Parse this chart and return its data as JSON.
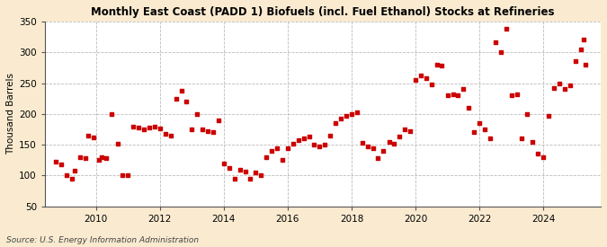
{
  "title": "Monthly East Coast (PADD 1) Biofuels (incl. Fuel Ethanol) Stocks at Refineries",
  "ylabel": "Thousand Barrels",
  "source": "Source: U.S. Energy Information Administration",
  "background_color": "#faebd0",
  "plot_bg_color": "#ffffff",
  "marker_color": "#cc0000",
  "ylim": [
    50,
    350
  ],
  "yticks": [
    50,
    100,
    150,
    200,
    250,
    300,
    350
  ],
  "xlim_start": 2008.4,
  "xlim_end": 2025.8,
  "xticks": [
    2010,
    2012,
    2014,
    2016,
    2018,
    2020,
    2022,
    2024
  ],
  "data": [
    [
      2008.75,
      123
    ],
    [
      2008.92,
      118
    ],
    [
      2009.08,
      100
    ],
    [
      2009.25,
      95
    ],
    [
      2009.33,
      108
    ],
    [
      2009.5,
      130
    ],
    [
      2009.67,
      128
    ],
    [
      2009.75,
      165
    ],
    [
      2009.92,
      162
    ],
    [
      2010.08,
      125
    ],
    [
      2010.17,
      130
    ],
    [
      2010.33,
      128
    ],
    [
      2010.5,
      200
    ],
    [
      2010.67,
      152
    ],
    [
      2010.83,
      100
    ],
    [
      2011.0,
      100
    ],
    [
      2011.17,
      180
    ],
    [
      2011.33,
      178
    ],
    [
      2011.5,
      175
    ],
    [
      2011.67,
      178
    ],
    [
      2011.83,
      180
    ],
    [
      2012.0,
      177
    ],
    [
      2012.17,
      168
    ],
    [
      2012.33,
      165
    ],
    [
      2012.5,
      225
    ],
    [
      2012.67,
      237
    ],
    [
      2012.83,
      220
    ],
    [
      2013.0,
      175
    ],
    [
      2013.17,
      200
    ],
    [
      2013.33,
      175
    ],
    [
      2013.5,
      172
    ],
    [
      2013.67,
      170
    ],
    [
      2013.83,
      190
    ],
    [
      2014.0,
      120
    ],
    [
      2014.17,
      113
    ],
    [
      2014.33,
      95
    ],
    [
      2014.5,
      110
    ],
    [
      2014.67,
      107
    ],
    [
      2014.83,
      95
    ],
    [
      2015.0,
      105
    ],
    [
      2015.17,
      100
    ],
    [
      2015.33,
      130
    ],
    [
      2015.5,
      140
    ],
    [
      2015.67,
      145
    ],
    [
      2015.83,
      125
    ],
    [
      2016.0,
      145
    ],
    [
      2016.17,
      152
    ],
    [
      2016.33,
      158
    ],
    [
      2016.5,
      160
    ],
    [
      2016.67,
      163
    ],
    [
      2016.83,
      150
    ],
    [
      2017.0,
      148
    ],
    [
      2017.17,
      150
    ],
    [
      2017.33,
      165
    ],
    [
      2017.5,
      185
    ],
    [
      2017.67,
      192
    ],
    [
      2017.83,
      197
    ],
    [
      2018.0,
      200
    ],
    [
      2018.17,
      202
    ],
    [
      2018.33,
      153
    ],
    [
      2018.5,
      148
    ],
    [
      2018.67,
      145
    ],
    [
      2018.83,
      128
    ],
    [
      2019.0,
      140
    ],
    [
      2019.17,
      155
    ],
    [
      2019.33,
      152
    ],
    [
      2019.5,
      163
    ],
    [
      2019.67,
      175
    ],
    [
      2019.83,
      172
    ],
    [
      2020.0,
      255
    ],
    [
      2020.17,
      262
    ],
    [
      2020.33,
      258
    ],
    [
      2020.5,
      248
    ],
    [
      2020.67,
      280
    ],
    [
      2020.83,
      278
    ],
    [
      2021.0,
      230
    ],
    [
      2021.17,
      232
    ],
    [
      2021.33,
      230
    ],
    [
      2021.5,
      240
    ],
    [
      2021.67,
      210
    ],
    [
      2021.83,
      170
    ],
    [
      2022.0,
      185
    ],
    [
      2022.17,
      175
    ],
    [
      2022.33,
      160
    ],
    [
      2022.5,
      316
    ],
    [
      2022.67,
      300
    ],
    [
      2022.83,
      338
    ],
    [
      2023.0,
      230
    ],
    [
      2023.17,
      232
    ],
    [
      2023.33,
      160
    ],
    [
      2023.5,
      200
    ],
    [
      2023.67,
      155
    ],
    [
      2023.83,
      135
    ],
    [
      2024.0,
      130
    ],
    [
      2024.17,
      197
    ],
    [
      2024.33,
      242
    ],
    [
      2024.5,
      250
    ],
    [
      2024.67,
      240
    ],
    [
      2024.83,
      246
    ],
    [
      2025.0,
      285
    ],
    [
      2025.17,
      305
    ],
    [
      2025.25,
      320
    ],
    [
      2025.33,
      280
    ]
  ]
}
